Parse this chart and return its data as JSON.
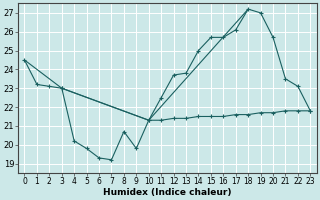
{
  "xlabel": "Humidex (Indice chaleur)",
  "bg_color": "#cce8e8",
  "line_color": "#1a6060",
  "grid_color": "#ffffff",
  "xlim": [
    -0.5,
    23.5
  ],
  "ylim": [
    18.5,
    27.5
  ],
  "yticks": [
    19,
    20,
    21,
    22,
    23,
    24,
    25,
    26,
    27
  ],
  "xticks": [
    0,
    1,
    2,
    3,
    4,
    5,
    6,
    7,
    8,
    9,
    10,
    11,
    12,
    13,
    14,
    15,
    16,
    17,
    18,
    19,
    20,
    21,
    22,
    23
  ],
  "line1_x": [
    0,
    1,
    2,
    3,
    4,
    5,
    6,
    7,
    8,
    9,
    10,
    11,
    12,
    13,
    14,
    15,
    16,
    17,
    18,
    19,
    20,
    21,
    22,
    23
  ],
  "line1_y": [
    24.5,
    23.2,
    23.1,
    23.0,
    20.2,
    19.8,
    19.3,
    19.2,
    20.7,
    19.8,
    21.3,
    22.5,
    23.7,
    23.8,
    25.0,
    25.7,
    25.7,
    26.1,
    27.2,
    27.0,
    25.7,
    23.5,
    23.1,
    21.8
  ],
  "line2_x": [
    0,
    3,
    10,
    18
  ],
  "line2_y": [
    24.5,
    23.0,
    21.3,
    27.2
  ],
  "line3_x": [
    3,
    10,
    11,
    12,
    13,
    14,
    15,
    16,
    17,
    18,
    19,
    20,
    21,
    22,
    23
  ],
  "line3_y": [
    23.0,
    21.3,
    21.3,
    21.4,
    21.4,
    21.5,
    21.5,
    21.5,
    21.6,
    21.6,
    21.7,
    21.7,
    21.8,
    21.8,
    21.8
  ]
}
